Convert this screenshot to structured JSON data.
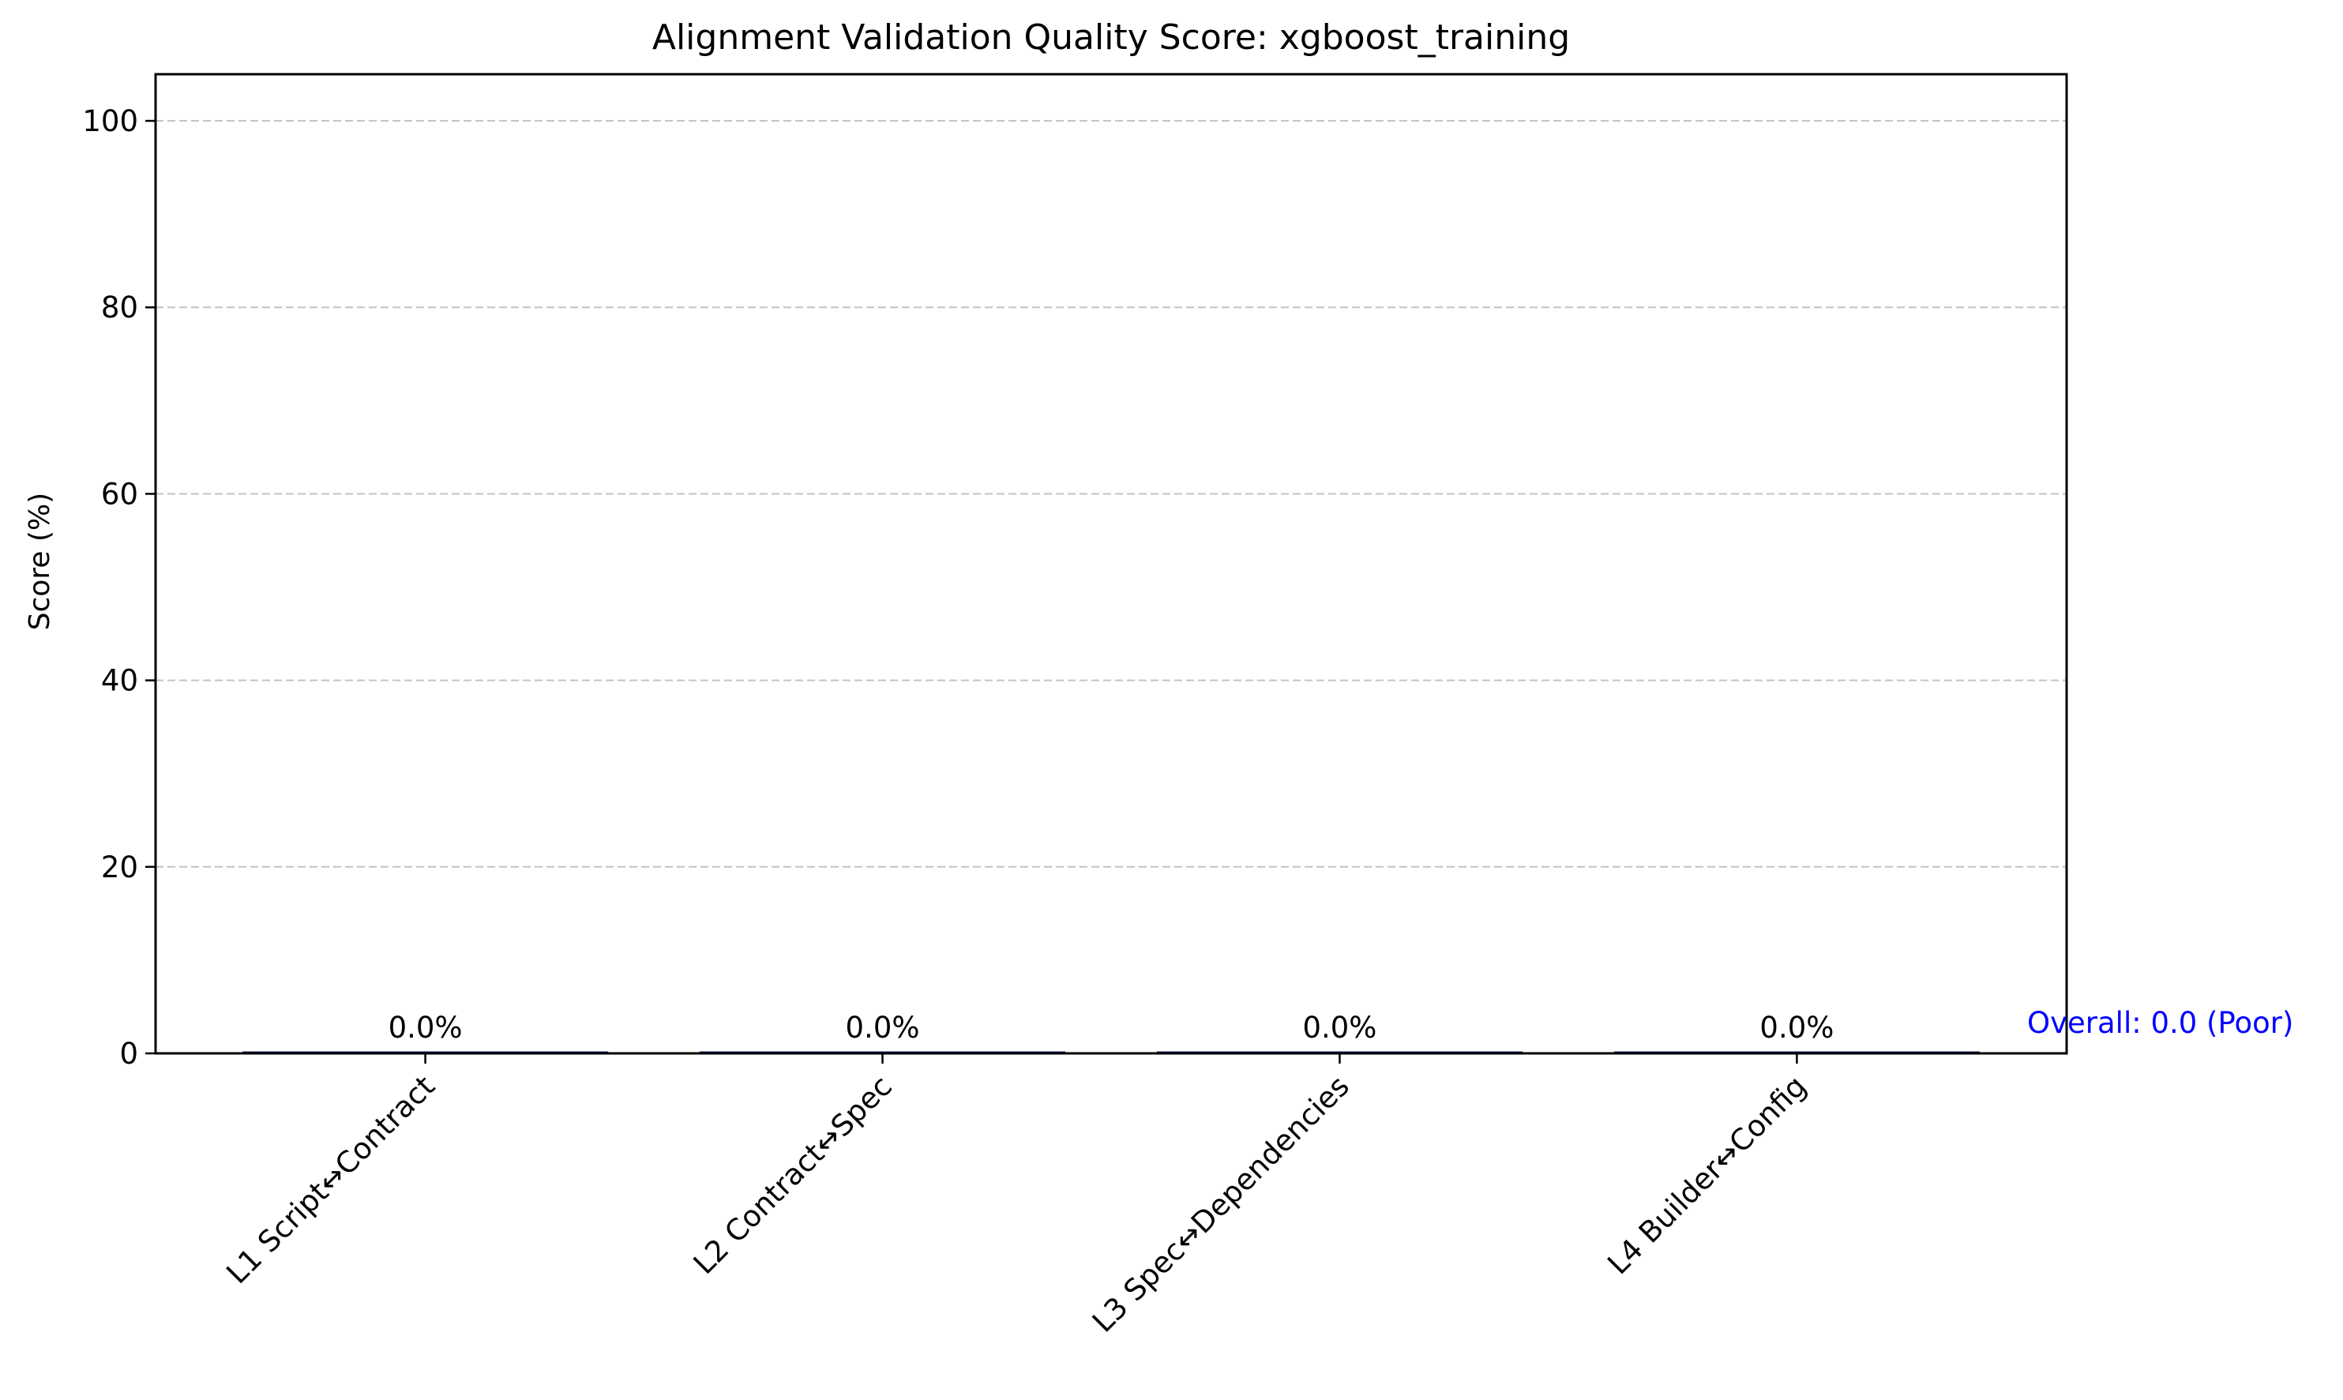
{
  "chart_data": {
    "type": "bar",
    "title": "Alignment Validation Quality Score: xgboost_training",
    "xlabel": "",
    "ylabel": "Score (%)",
    "categories": [
      "L1 Script↔Contract",
      "L2 Contract↔Spec",
      "L3 Spec↔Dependencies",
      "L4 Builder↔Config"
    ],
    "values": [
      0,
      0,
      0,
      0
    ],
    "value_labels": [
      "0.0%",
      "0.0%",
      "0.0%",
      "0.0%"
    ],
    "ylim": [
      0,
      105
    ],
    "yticks": [
      0,
      20,
      40,
      60,
      80,
      100
    ],
    "grid": "y-dashed",
    "legend": "none",
    "annotation": {
      "text": "Overall: 0.0 (Poor)",
      "value": 0.0,
      "color": "#0000ff"
    },
    "colors": {
      "text": "#000000",
      "grid": "#c4c4c4",
      "baseline": "#1f2a6b",
      "annotation": "#0000ff"
    }
  }
}
